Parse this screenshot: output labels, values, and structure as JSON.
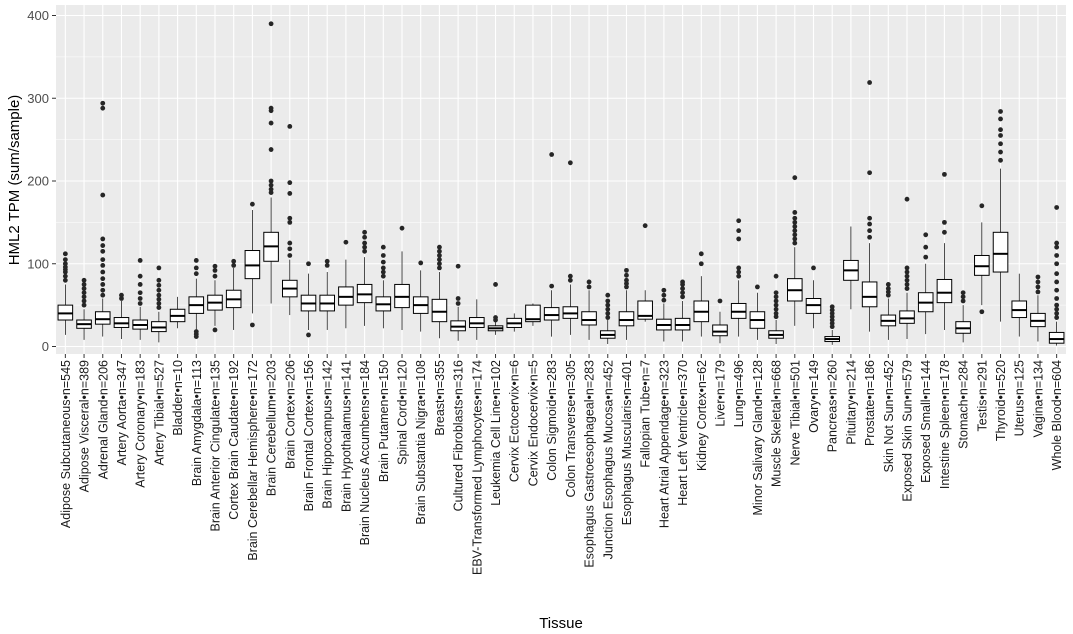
{
  "chart_data": {
    "type": "boxplot",
    "title": "",
    "xlabel": "Tissue",
    "ylabel": "HML2 TPM (sum/sample)",
    "ylim": [
      -6,
      404
    ],
    "yticks": [
      0,
      100,
      200,
      300,
      400
    ],
    "grid": true,
    "colors": {
      "panel": "#ebebeb",
      "grid_major": "#ffffff",
      "box_fill": "#ffffff",
      "box_line": "#000000",
      "outlier": "#262626"
    },
    "categories": [
      {
        "label": "Adipose Subcutaneous",
        "n": 545,
        "q1": 32,
        "median": 40,
        "q3": 50,
        "whisker_lo": 14,
        "whisker_hi": 75,
        "outliers": [
          80,
          85,
          90,
          93,
          96,
          100,
          105,
          112
        ]
      },
      {
        "label": "Adipose Visceral",
        "n": 389,
        "q1": 22,
        "median": 27,
        "q3": 32,
        "whisker_lo": 8,
        "whisker_hi": 45,
        "outliers": [
          50,
          55,
          60,
          65,
          70,
          75,
          80
        ]
      },
      {
        "label": "Adrenal Gland",
        "n": 206,
        "q1": 27,
        "median": 33,
        "q3": 42,
        "whisker_lo": 12,
        "whisker_hi": 58,
        "outliers": [
          62,
          68,
          75,
          82,
          90,
          98,
          105,
          115,
          122,
          130,
          183,
          288,
          294
        ]
      },
      {
        "label": "Artery Aorta",
        "n": 347,
        "q1": 23,
        "median": 28,
        "q3": 35,
        "whisker_lo": 9,
        "whisker_hi": 55,
        "outliers": [
          58,
          62
        ]
      },
      {
        "label": "Artery Coronary",
        "n": 183,
        "q1": 21,
        "median": 26,
        "q3": 32,
        "whisker_lo": 8,
        "whisker_hi": 48,
        "outliers": [
          52,
          58,
          65,
          75,
          85,
          104
        ]
      },
      {
        "label": "Artery Tibial",
        "n": 527,
        "q1": 18,
        "median": 23,
        "q3": 30,
        "whisker_lo": 5,
        "whisker_hi": 42,
        "outliers": [
          47,
          52,
          57,
          62,
          68,
          74,
          80,
          95
        ]
      },
      {
        "label": "Bladder",
        "n": 10,
        "q1": 30,
        "median": 37,
        "q3": 45,
        "whisker_lo": 22,
        "whisker_hi": 60,
        "outliers": []
      },
      {
        "label": "Brain Amygdala",
        "n": 113,
        "q1": 40,
        "median": 50,
        "q3": 60,
        "whisker_lo": 20,
        "whisker_hi": 82,
        "outliers": [
          12,
          15,
          18,
          88,
          95,
          104
        ]
      },
      {
        "label": "Brain Anterior Cingulate",
        "n": 135,
        "q1": 44,
        "median": 53,
        "q3": 62,
        "whisker_lo": 25,
        "whisker_hi": 80,
        "outliers": [
          20,
          85,
          92,
          97
        ]
      },
      {
        "label": "Cortex Brain Caudate",
        "n": 192,
        "q1": 47,
        "median": 57,
        "q3": 68,
        "whisker_lo": 20,
        "whisker_hi": 95,
        "outliers": [
          98,
          103
        ]
      },
      {
        "label": "Brain Cerebellar Hemisphere",
        "n": 172,
        "q1": 82,
        "median": 98,
        "q3": 116,
        "whisker_lo": 40,
        "whisker_hi": 165,
        "outliers": [
          26,
          172
        ]
      },
      {
        "label": "Brain Cerebellum",
        "n": 203,
        "q1": 103,
        "median": 121,
        "q3": 138,
        "whisker_lo": 52,
        "whisker_hi": 180,
        "outliers": [
          186,
          190,
          195,
          200,
          238,
          270,
          285,
          288,
          390
        ]
      },
      {
        "label": "Brain Cortex",
        "n": 206,
        "q1": 60,
        "median": 70,
        "q3": 80,
        "whisker_lo": 38,
        "whisker_hi": 105,
        "outliers": [
          110,
          118,
          125,
          150,
          155,
          185,
          198,
          266
        ]
      },
      {
        "label": "Brain Frontal Cortex",
        "n": 156,
        "q1": 43,
        "median": 52,
        "q3": 62,
        "whisker_lo": 20,
        "whisker_hi": 88,
        "outliers": [
          14,
          100
        ]
      },
      {
        "label": "Brain Hippocampus",
        "n": 142,
        "q1": 43,
        "median": 52,
        "q3": 62,
        "whisker_lo": 20,
        "whisker_hi": 90,
        "outliers": [
          98,
          103
        ]
      },
      {
        "label": "Brain Hypothalamus",
        "n": 141,
        "q1": 50,
        "median": 60,
        "q3": 72,
        "whisker_lo": 22,
        "whisker_hi": 105,
        "outliers": [
          126
        ]
      },
      {
        "label": "Brain Nucleus Accumbens",
        "n": 184,
        "q1": 53,
        "median": 63,
        "q3": 75,
        "whisker_lo": 25,
        "whisker_hi": 108,
        "outliers": [
          115,
          120,
          125,
          132,
          138
        ]
      },
      {
        "label": "Brain Putamen",
        "n": 150,
        "q1": 43,
        "median": 51,
        "q3": 60,
        "whisker_lo": 22,
        "whisker_hi": 80,
        "outliers": [
          85,
          90,
          95,
          102,
          110,
          120
        ]
      },
      {
        "label": "Spinal Cord",
        "n": 120,
        "q1": 47,
        "median": 60,
        "q3": 75,
        "whisker_lo": 20,
        "whisker_hi": 115,
        "outliers": [
          143
        ]
      },
      {
        "label": "Brain Substantia Nigra",
        "n": 108,
        "q1": 40,
        "median": 50,
        "q3": 60,
        "whisker_lo": 18,
        "whisker_hi": 92,
        "outliers": [
          101
        ]
      },
      {
        "label": "Breast",
        "n": 355,
        "q1": 30,
        "median": 42,
        "q3": 57,
        "whisker_lo": 10,
        "whisker_hi": 90,
        "outliers": [
          95,
          100,
          105,
          110,
          115,
          120
        ]
      },
      {
        "label": "Cultured Fibroblasts",
        "n": 316,
        "q1": 19,
        "median": 24,
        "q3": 31,
        "whisker_lo": 7,
        "whisker_hi": 48,
        "outliers": [
          52,
          58,
          97
        ]
      },
      {
        "label": "EBV-Transformed Lymphocytes",
        "n": 174,
        "q1": 23,
        "median": 28,
        "q3": 35,
        "whisker_lo": 8,
        "whisker_hi": 57,
        "outliers": []
      },
      {
        "label": "Leukemia Cell Line",
        "n": 102,
        "q1": 19,
        "median": 22,
        "q3": 25,
        "whisker_lo": 14,
        "whisker_hi": 30,
        "outliers": [
          32,
          35,
          75
        ]
      },
      {
        "label": "Cervix Ectocervix",
        "n": 6,
        "q1": 23,
        "median": 28,
        "q3": 34,
        "whisker_lo": 18,
        "whisker_hi": 40,
        "outliers": []
      },
      {
        "label": "Cervix Endocervix",
        "n": 5,
        "q1": 30,
        "median": 33,
        "q3": 50,
        "whisker_lo": 25,
        "whisker_hi": 52,
        "outliers": []
      },
      {
        "label": "Colon Sigmoid",
        "n": 283,
        "q1": 32,
        "median": 38,
        "q3": 47,
        "whisker_lo": 12,
        "whisker_hi": 68,
        "outliers": [
          73,
          232
        ]
      },
      {
        "label": "Colon Transverse",
        "n": 305,
        "q1": 34,
        "median": 40,
        "q3": 48,
        "whisker_lo": 14,
        "whisker_hi": 75,
        "outliers": [
          80,
          85,
          222
        ]
      },
      {
        "label": "Esophagus Gastroesophageal",
        "n": 283,
        "q1": 26,
        "median": 32,
        "q3": 42,
        "whisker_lo": 8,
        "whisker_hi": 68,
        "outliers": [
          72,
          78
        ]
      },
      {
        "label": "Junction Esophagus Mucosa",
        "n": 452,
        "q1": 10,
        "median": 14,
        "q3": 19,
        "whisker_lo": 3,
        "whisker_hi": 32,
        "outliers": [
          35,
          40,
          45,
          50,
          55,
          62
        ]
      },
      {
        "label": "Esophagus Muscularis",
        "n": 401,
        "q1": 25,
        "median": 32,
        "q3": 42,
        "whisker_lo": 8,
        "whisker_hi": 68,
        "outliers": [
          72,
          76,
          80,
          86,
          92
        ]
      },
      {
        "label": "Fallopian Tube",
        "n": 7,
        "q1": 33,
        "median": 37,
        "q3": 55,
        "whisker_lo": 30,
        "whisker_hi": 68,
        "outliers": [
          146
        ]
      },
      {
        "label": "Heart Atrial Appendage",
        "n": 323,
        "q1": 20,
        "median": 26,
        "q3": 33,
        "whisker_lo": 6,
        "whisker_hi": 52,
        "outliers": [
          56,
          62,
          68
        ]
      },
      {
        "label": "Heart Left Ventricle",
        "n": 370,
        "q1": 20,
        "median": 26,
        "q3": 34,
        "whisker_lo": 6,
        "whisker_hi": 55,
        "outliers": [
          60,
          65,
          70,
          75,
          78
        ]
      },
      {
        "label": "Kidney Cortex",
        "n": 62,
        "q1": 30,
        "median": 42,
        "q3": 55,
        "whisker_lo": 12,
        "whisker_hi": 85,
        "outliers": [
          100,
          112
        ]
      },
      {
        "label": "Liver",
        "n": 179,
        "q1": 13,
        "median": 18,
        "q3": 26,
        "whisker_lo": 4,
        "whisker_hi": 42,
        "outliers": [
          55
        ]
      },
      {
        "label": "Lung",
        "n": 496,
        "q1": 34,
        "median": 42,
        "q3": 52,
        "whisker_lo": 12,
        "whisker_hi": 80,
        "outliers": [
          85,
          90,
          95,
          130,
          140,
          152
        ]
      },
      {
        "label": "Minor Salivary Gland",
        "n": 128,
        "q1": 22,
        "median": 32,
        "q3": 42,
        "whisker_lo": 8,
        "whisker_hi": 65,
        "outliers": [
          72
        ]
      },
      {
        "label": "Muscle Skeletal",
        "n": 668,
        "q1": 10,
        "median": 14,
        "q3": 19,
        "whisker_lo": 3,
        "whisker_hi": 32,
        "outliers": [
          36,
          40,
          45,
          50,
          55,
          60,
          65,
          85
        ]
      },
      {
        "label": "Nerve Tibial",
        "n": 501,
        "q1": 55,
        "median": 68,
        "q3": 82,
        "whisker_lo": 25,
        "whisker_hi": 120,
        "outliers": [
          125,
          130,
          135,
          140,
          145,
          150,
          155,
          162,
          204
        ]
      },
      {
        "label": "Ovary",
        "n": 149,
        "q1": 40,
        "median": 50,
        "q3": 58,
        "whisker_lo": 22,
        "whisker_hi": 80,
        "outliers": [
          95
        ]
      },
      {
        "label": "Pancreas",
        "n": 260,
        "q1": 6,
        "median": 9,
        "q3": 12,
        "whisker_lo": 2,
        "whisker_hi": 20,
        "outliers": [
          24,
          28,
          32,
          36,
          40,
          44,
          48
        ]
      },
      {
        "label": "Pituitary",
        "n": 214,
        "q1": 80,
        "median": 92,
        "q3": 104,
        "whisker_lo": 45,
        "whisker_hi": 145,
        "outliers": []
      },
      {
        "label": "Prostate",
        "n": 186,
        "q1": 48,
        "median": 60,
        "q3": 78,
        "whisker_lo": 18,
        "whisker_hi": 125,
        "outliers": [
          132,
          140,
          148,
          155,
          210,
          319
        ]
      },
      {
        "label": "Skin Not Sun",
        "n": 452,
        "q1": 25,
        "median": 31,
        "q3": 38,
        "whisker_lo": 8,
        "whisker_hi": 58,
        "outliers": [
          62,
          66,
          70,
          75
        ]
      },
      {
        "label": "Exposed Skin Sun",
        "n": 579,
        "q1": 28,
        "median": 34,
        "q3": 43,
        "whisker_lo": 9,
        "whisker_hi": 65,
        "outliers": [
          70,
          75,
          80,
          85,
          90,
          95,
          178
        ]
      },
      {
        "label": "Exposed Small",
        "n": 144,
        "q1": 42,
        "median": 53,
        "q3": 65,
        "whisker_lo": 15,
        "whisker_hi": 100,
        "outliers": [
          108,
          120,
          135
        ]
      },
      {
        "label": "Intestine Spleen",
        "n": 178,
        "q1": 53,
        "median": 65,
        "q3": 81,
        "whisker_lo": 20,
        "whisker_hi": 125,
        "outliers": [
          138,
          150,
          208
        ]
      },
      {
        "label": "Stomach",
        "n": 284,
        "q1": 16,
        "median": 22,
        "q3": 30,
        "whisker_lo": 5,
        "whisker_hi": 50,
        "outliers": [
          55,
          60,
          65
        ]
      },
      {
        "label": "Testis",
        "n": 291,
        "q1": 86,
        "median": 97,
        "q3": 110,
        "whisker_lo": 50,
        "whisker_hi": 150,
        "outliers": [
          42,
          170
        ]
      },
      {
        "label": "Thyroid",
        "n": 520,
        "q1": 90,
        "median": 112,
        "q3": 138,
        "whisker_lo": 30,
        "whisker_hi": 215,
        "outliers": [
          225,
          235,
          245,
          255,
          262,
          275,
          284
        ]
      },
      {
        "label": "Uterus",
        "n": 125,
        "q1": 35,
        "median": 44,
        "q3": 55,
        "whisker_lo": 12,
        "whisker_hi": 88,
        "outliers": []
      },
      {
        "label": "Vagina",
        "n": 134,
        "q1": 24,
        "median": 31,
        "q3": 40,
        "whisker_lo": 6,
        "whisker_hi": 62,
        "outliers": [
          66,
          72,
          78,
          84
        ]
      },
      {
        "label": "Whole Blood",
        "n": 604,
        "q1": 4,
        "median": 9,
        "q3": 17,
        "whisker_lo": 1,
        "whisker_hi": 30,
        "outliers": [
          35,
          40,
          45,
          50,
          58,
          68,
          78,
          88,
          100,
          110,
          120,
          125,
          168
        ]
      }
    ]
  }
}
